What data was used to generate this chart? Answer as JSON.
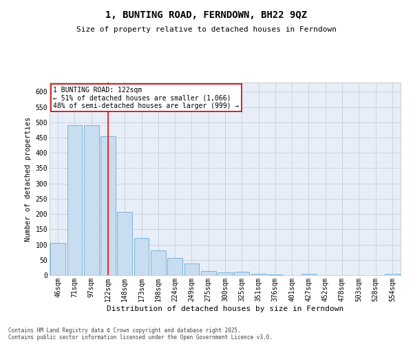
{
  "title": "1, BUNTING ROAD, FERNDOWN, BH22 9QZ",
  "subtitle": "Size of property relative to detached houses in Ferndown",
  "xlabel": "Distribution of detached houses by size in Ferndown",
  "ylabel": "Number of detached properties",
  "categories": [
    "46sqm",
    "71sqm",
    "97sqm",
    "122sqm",
    "148sqm",
    "173sqm",
    "198sqm",
    "224sqm",
    "249sqm",
    "275sqm",
    "300sqm",
    "325sqm",
    "351sqm",
    "376sqm",
    "401sqm",
    "427sqm",
    "452sqm",
    "478sqm",
    "503sqm",
    "528sqm",
    "554sqm"
  ],
  "values": [
    105,
    490,
    490,
    455,
    207,
    122,
    82,
    57,
    38,
    13,
    8,
    11,
    5,
    2,
    0,
    5,
    0,
    0,
    0,
    0,
    5
  ],
  "bar_color": "#c9ddf0",
  "bar_edge_color": "#6aaad4",
  "grid_color": "#c8d4e0",
  "background_color": "#ffffff",
  "plot_bg_color": "#e8eef8",
  "redline_x": 3,
  "annotation_text": "1 BUNTING ROAD: 122sqm\n← 51% of detached houses are smaller (1,066)\n48% of semi-detached houses are larger (999) →",
  "annotation_box_color": "#ffffff",
  "annotation_box_edge": "#cc0000",
  "footer": "Contains HM Land Registry data © Crown copyright and database right 2025.\nContains public sector information licensed under the Open Government Licence v3.0.",
  "ylim": [
    0,
    630
  ],
  "yticks": [
    0,
    50,
    100,
    150,
    200,
    250,
    300,
    350,
    400,
    450,
    500,
    550,
    600
  ],
  "title_fontsize": 10,
  "subtitle_fontsize": 8,
  "tick_fontsize": 7,
  "ylabel_fontsize": 7.5,
  "xlabel_fontsize": 8,
  "annotation_fontsize": 7,
  "footer_fontsize": 5.5
}
